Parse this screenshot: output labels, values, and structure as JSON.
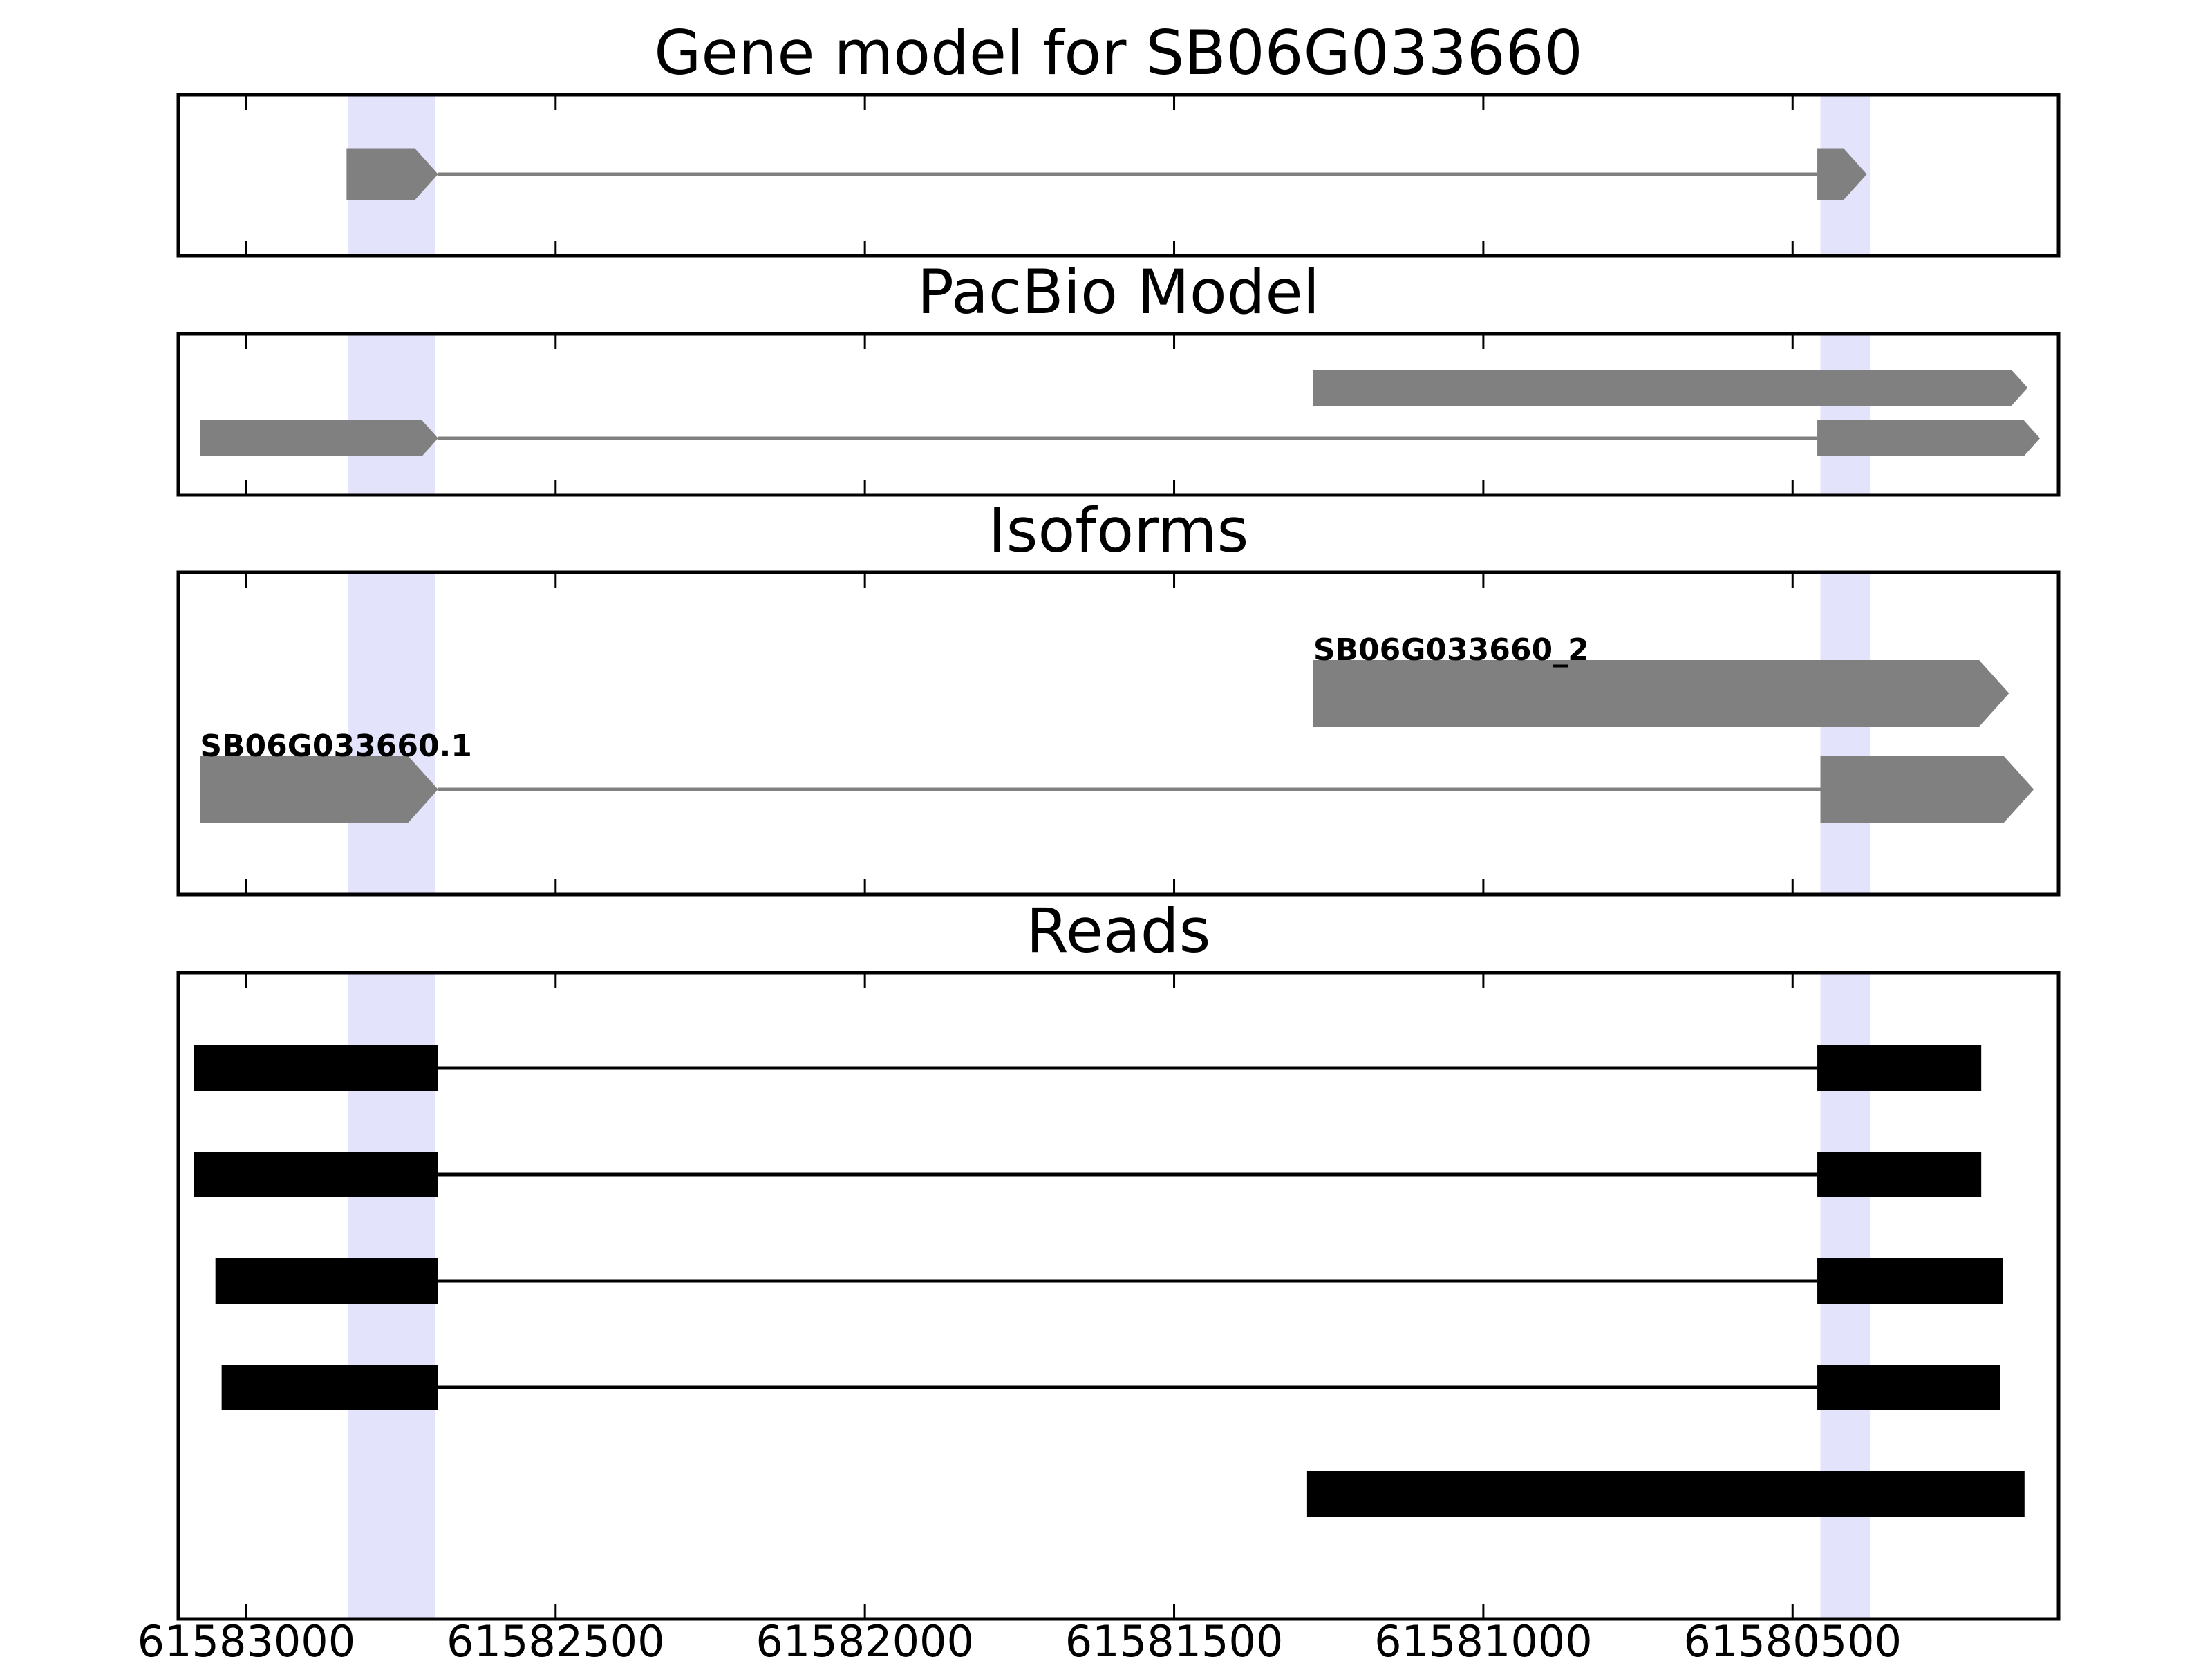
{
  "figure": {
    "xaxis": {
      "domain": [
        61583110,
        61580070
      ],
      "ticks": [
        61583000,
        61582500,
        61582000,
        61581500,
        61581000,
        61580500
      ],
      "tick_labels": [
        "61583000",
        "61582500",
        "61582000",
        "61581500",
        "61581000",
        "61580500"
      ]
    },
    "highlight_color": "#e3e3fc",
    "highlights": [
      [
        61582835,
        61582695
      ],
      [
        61580455,
        61580375
      ]
    ],
    "panels": [
      {
        "id": "gene-model",
        "title": "Gene model for SB06G033660",
        "row_count": 1,
        "color": "#808080",
        "arrow": true,
        "tracks": [
          {
            "row": 0,
            "label": "",
            "line_weight": 0.35,
            "exons": [
              [
                61582838,
                61582690
              ],
              [
                61580460,
                61580380
              ]
            ]
          }
        ]
      },
      {
        "id": "pacbio-model",
        "title": "PacBio Model",
        "row_count": 2,
        "color": "#808080",
        "arrow": true,
        "tracks": [
          {
            "row": 0,
            "label": "",
            "line_weight": 0.5,
            "exons": [
              [
                61581275,
                61580120
              ]
            ]
          },
          {
            "row": 1,
            "label": "",
            "line_weight": 0.5,
            "exons": [
              [
                61583075,
                61582690
              ],
              [
                61580460,
                61580100
              ]
            ]
          }
        ]
      },
      {
        "id": "isoforms",
        "title": "Isoforms",
        "row_count": 2,
        "color": "#808080",
        "arrow": true,
        "tracks": [
          {
            "row": 0,
            "label": "SB06G033660_2",
            "line_weight": 0.55,
            "exons": [
              [
                61581275,
                61580150
              ]
            ]
          },
          {
            "row": 1,
            "label": "SB06G033660.1",
            "line_weight": 0.55,
            "exons": [
              [
                61583075,
                61582690
              ],
              [
                61580455,
                61580110
              ]
            ]
          }
        ]
      },
      {
        "id": "reads",
        "title": "Reads",
        "row_count": 5,
        "color": "#000000",
        "arrow": false,
        "tracks": [
          {
            "row": 0,
            "label": "",
            "line_weight": 0.42,
            "exons": [
              [
                61583085,
                61582690
              ],
              [
                61580460,
                61580195
              ]
            ]
          },
          {
            "row": 1,
            "label": "",
            "line_weight": 0.42,
            "exons": [
              [
                61583085,
                61582690
              ],
              [
                61580460,
                61580195
              ]
            ]
          },
          {
            "row": 2,
            "label": "",
            "line_weight": 0.42,
            "exons": [
              [
                61583050,
                61582690
              ],
              [
                61580460,
                61580160
              ]
            ]
          },
          {
            "row": 3,
            "label": "",
            "line_weight": 0.42,
            "exons": [
              [
                61583040,
                61582690
              ],
              [
                61580460,
                61580165
              ]
            ]
          },
          {
            "row": 4,
            "label": "",
            "line_weight": 0.42,
            "exons": [
              [
                61581285,
                61580125
              ]
            ]
          }
        ]
      }
    ]
  }
}
